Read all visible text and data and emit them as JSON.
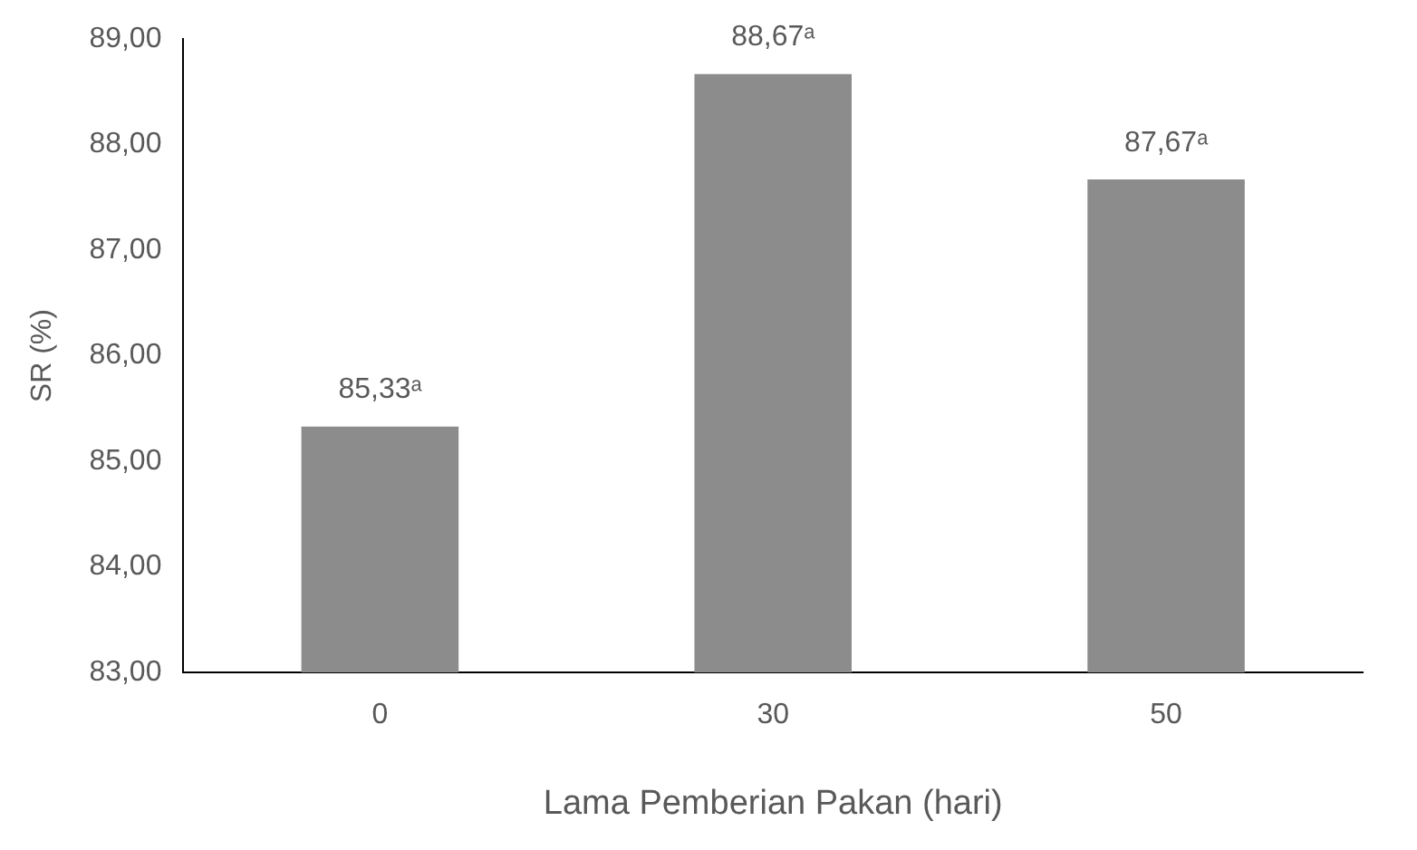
{
  "chart_data": {
    "type": "bar",
    "xlabel": "Lama Pemberian Pakan (hari)",
    "ylabel": "SR (%)",
    "categories": [
      "0",
      "30",
      "50"
    ],
    "values": [
      85.33,
      88.67,
      87.67
    ],
    "value_labels": [
      "85,33ᵃ",
      "88,67ᵃ",
      "87,67ᵃ"
    ],
    "color": "#8c8c8c",
    "ylim": [
      83,
      89
    ],
    "yticks": [
      {
        "value": 83,
        "label": "83,00"
      },
      {
        "value": 84,
        "label": "84,00"
      },
      {
        "value": 85,
        "label": "85,00"
      },
      {
        "value": 86,
        "label": "86,00"
      },
      {
        "value": 87,
        "label": "87,00"
      },
      {
        "value": 88,
        "label": "88,00"
      },
      {
        "value": 89,
        "label": "89,00"
      }
    ],
    "grid": false,
    "legend": false
  }
}
